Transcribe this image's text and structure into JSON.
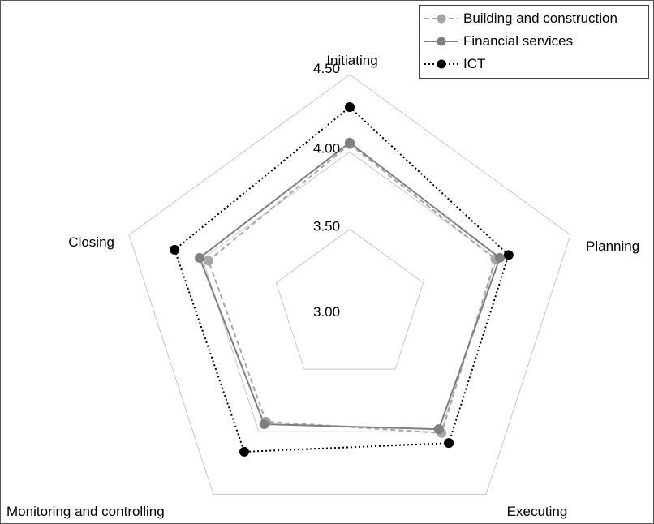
{
  "chart_data": {
    "type": "radar",
    "title": "",
    "axes": [
      "Initiating",
      "Planning",
      "Executing",
      "Monitoring and controlling",
      "Closing"
    ],
    "r_ticks": [
      "3.00",
      "3.50",
      "4.00",
      "4.50"
    ],
    "r_range": [
      3.0,
      4.5
    ],
    "grid": true,
    "legend_position": "top-right",
    "series": [
      {
        "name": "Building and construction",
        "values": [
          4.05,
          3.99,
          4.01,
          3.92,
          3.96
        ],
        "color": "#a6a6a6",
        "line_style": "dashed"
      },
      {
        "name": "Financial services",
        "values": [
          4.06,
          4.02,
          3.98,
          3.94,
          4.02
        ],
        "color": "#7f7f7f",
        "line_style": "solid"
      },
      {
        "name": "ICT",
        "values": [
          4.29,
          4.08,
          4.09,
          4.16,
          4.19
        ],
        "color": "#000000",
        "line_style": "dotted"
      }
    ]
  }
}
